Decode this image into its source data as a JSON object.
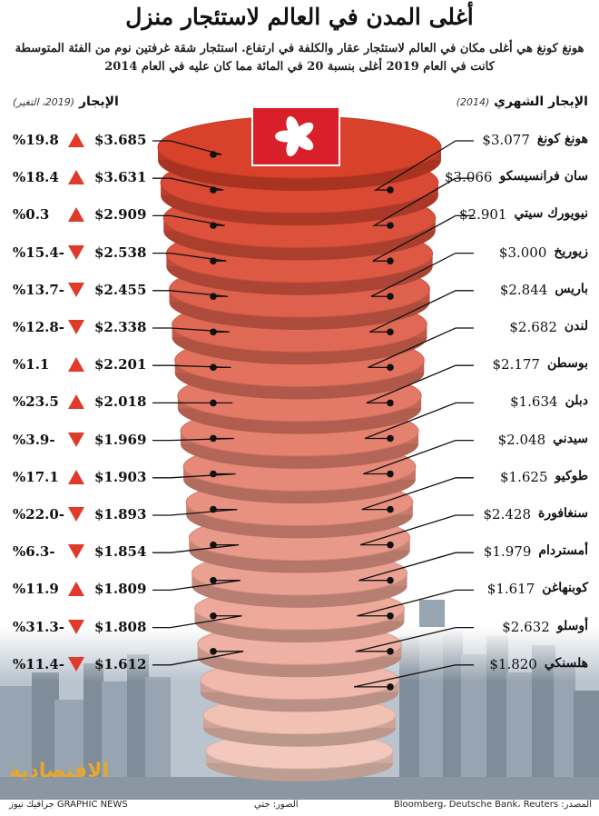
{
  "title": "أغلى المدن في العالم لاستئجار منزل",
  "subtitle_line1": "هونغ كونغ هي أغلى مكان في العالم لاستئجار عقار والكلفة في ارتفاع. استئجار شقة غرفتين نوم من الفئة المتوسطة",
  "subtitle_line2": "كانت في العام 2019 أغلى بنسبة 20 في المائة مما كان عليه في العام 2014",
  "header_left": {
    "label": "الإيجار",
    "note": "(2019، التغير)"
  },
  "header_right": {
    "label": "الإيجار الشهري",
    "note": "(2014)"
  },
  "colors": {
    "top_disc": "#d8412a",
    "bottom_disc": "#f3c9bd",
    "up": "#e03a2a",
    "down": "#e03a2a",
    "flag": "#d91f2a"
  },
  "icons": {
    "flag": "hong-kong-flag-icon",
    "up": "triangle-up-icon",
    "down": "triangle-down-icon"
  },
  "chart_data": {
    "type": "table",
    "columns": [
      "city",
      "rent_2014",
      "rent_2019",
      "change_pct",
      "direction"
    ],
    "rows": [
      {
        "city": "هونغ كونغ",
        "rent_2014": "$3.077",
        "rent_2019": "$3.685",
        "change": "%19.8",
        "direction": "up"
      },
      {
        "city": "سان فرانسيسكو",
        "rent_2014": "$3.066",
        "rent_2019": "$3.631",
        "change": "%18.4",
        "direction": "up"
      },
      {
        "city": "نيويورك سيتي",
        "rent_2014": "$2.901",
        "rent_2019": "$2.909",
        "change": "%0.3",
        "direction": "up"
      },
      {
        "city": "زيوريخ",
        "rent_2014": "$3.000",
        "rent_2019": "$2.538",
        "change": "%15.4-",
        "direction": "down"
      },
      {
        "city": "باريس",
        "rent_2014": "$2.844",
        "rent_2019": "$2.455",
        "change": "%13.7-",
        "direction": "down"
      },
      {
        "city": "لندن",
        "rent_2014": "$2.682",
        "rent_2019": "$2.338",
        "change": "%12.8-",
        "direction": "down"
      },
      {
        "city": "بوسطن",
        "rent_2014": "$2.177",
        "rent_2019": "$2.201",
        "change": "%1.1",
        "direction": "up"
      },
      {
        "city": "دبلن",
        "rent_2014": "$1.634",
        "rent_2019": "$2.018",
        "change": "%23.5",
        "direction": "up"
      },
      {
        "city": "سيدني",
        "rent_2014": "$2.048",
        "rent_2019": "$1.969",
        "change": "%3.9-",
        "direction": "down"
      },
      {
        "city": "طوكيو",
        "rent_2014": "$1.625",
        "rent_2019": "$1.903",
        "change": "%17.1",
        "direction": "up"
      },
      {
        "city": "سنغافورة",
        "rent_2014": "$2.428",
        "rent_2019": "$1.893",
        "change": "%22.0-",
        "direction": "down"
      },
      {
        "city": "أمستردام",
        "rent_2014": "$1.979",
        "rent_2019": "$1.854",
        "change": "%6.3-",
        "direction": "down"
      },
      {
        "city": "كوبنهاغن",
        "rent_2014": "$1.617",
        "rent_2019": "$1.809",
        "change": "%11.9",
        "direction": "up"
      },
      {
        "city": "أوسلو",
        "rent_2014": "$2.632",
        "rent_2019": "$1.808",
        "change": "%31.3-",
        "direction": "down"
      },
      {
        "city": "هلسنكي",
        "rent_2014": "$1.820",
        "rent_2019": "$1.612",
        "change": "%11.4-",
        "direction": "down"
      }
    ]
  },
  "footer": {
    "source": "المصدر: Bloomberg، Deutsche Bank، Reuters",
    "photos": "الصور: جتي",
    "credit": "GRAPHIC NEWS جرافيك نيوز"
  },
  "watermark": "الاقتصادية"
}
